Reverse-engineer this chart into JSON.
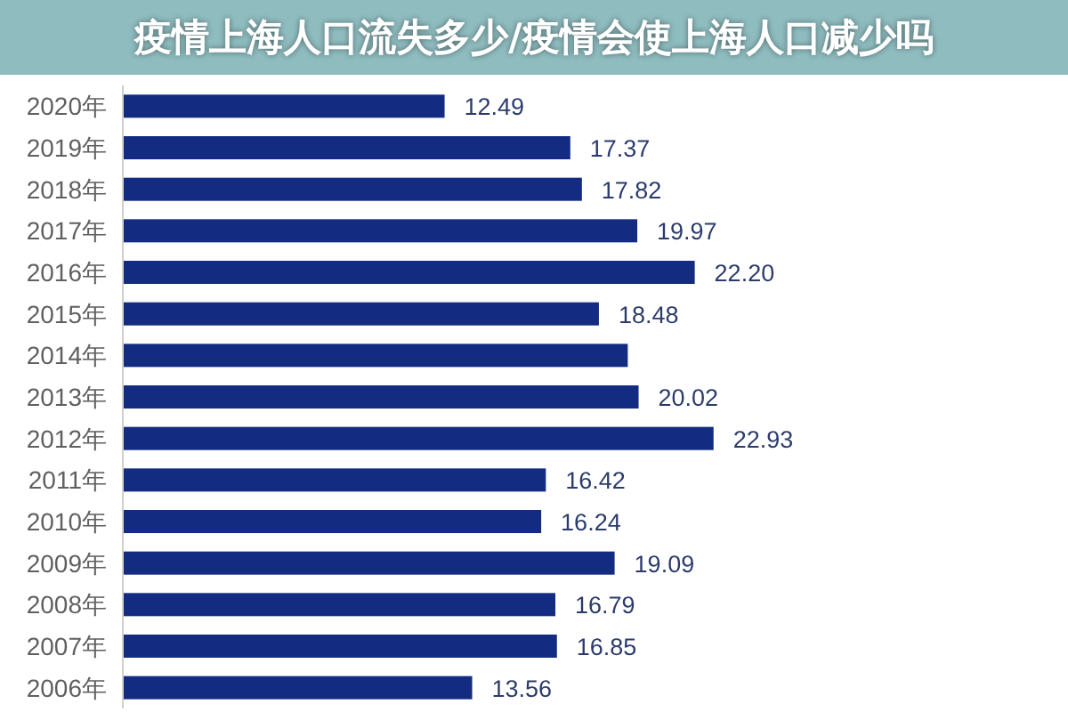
{
  "chart_data": {
    "type": "bar",
    "orientation": "horizontal",
    "title": "疫情上海人口流失多少/疫情会使上海人口减少吗",
    "categories": [
      "2020年",
      "2019年",
      "2018年",
      "2017年",
      "2016年",
      "2015年",
      "2014年",
      "2013年",
      "2012年",
      "2011年",
      "2010年",
      "2009年",
      "2008年",
      "2007年",
      "2006年"
    ],
    "values": [
      12.49,
      17.37,
      17.82,
      19.97,
      22.2,
      18.48,
      19.6,
      20.02,
      22.93,
      16.42,
      16.24,
      19.09,
      16.79,
      16.85,
      13.56
    ],
    "value_labels": [
      "12.49",
      "17.37",
      "17.82",
      "19.97",
      "22.20",
      "18.48",
      null,
      "20.02",
      "22.93",
      "16.42",
      "16.24",
      "19.09",
      "16.79",
      "16.85",
      "13.56"
    ],
    "color": "#132c82"
  }
}
